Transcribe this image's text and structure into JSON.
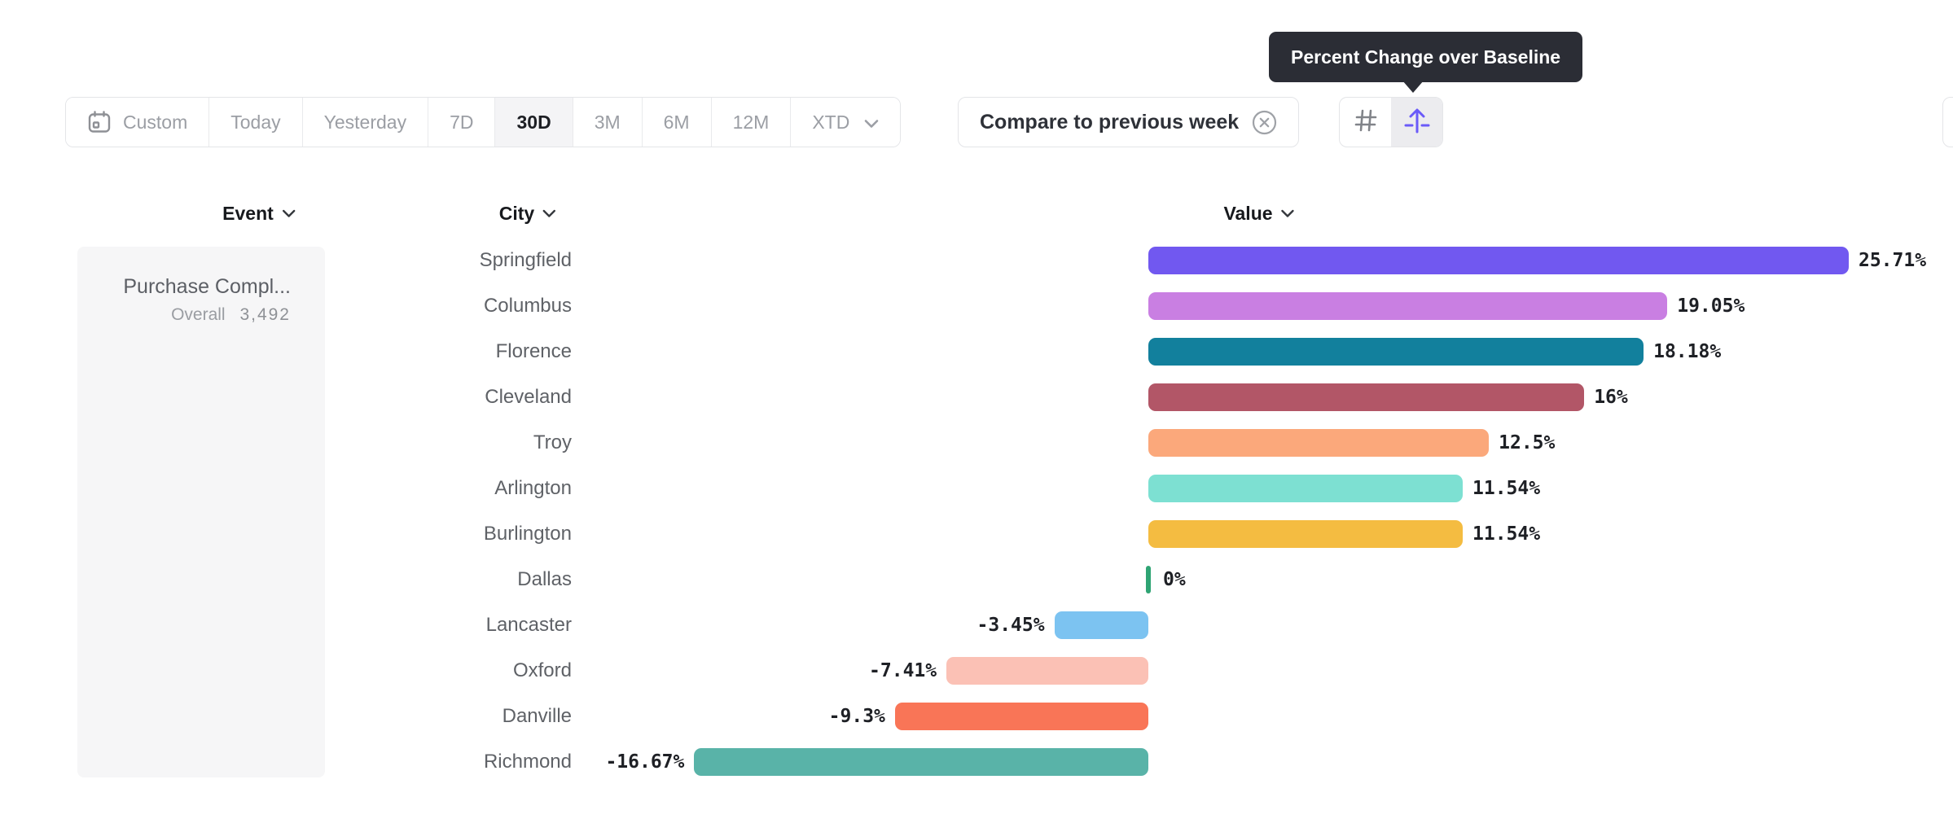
{
  "toolbar": {
    "date_ranges": [
      "Custom",
      "Today",
      "Yesterday",
      "7D",
      "30D",
      "3M",
      "6M",
      "12M",
      "XTD"
    ],
    "active_range": "30D",
    "compare_label": "Compare to previous week",
    "icon_names": [
      "number-grid-icon",
      "percent-change-baseline-icon"
    ]
  },
  "tooltip": {
    "text": "Percent Change over Baseline"
  },
  "columns": {
    "event": "Event",
    "city": "City",
    "value": "Value"
  },
  "event_card": {
    "title": "Purchase Compl...",
    "metric_label": "Overall",
    "metric_value": "3,492"
  },
  "chart_data": {
    "type": "bar",
    "orientation": "horizontal",
    "title": "Percent Change over Baseline",
    "unit": "%",
    "baseline": 0,
    "xlim": [
      -16.67,
      25.71
    ],
    "categories": [
      "Springfield",
      "Columbus",
      "Florence",
      "Cleveland",
      "Troy",
      "Arlington",
      "Burlington",
      "Dallas",
      "Lancaster",
      "Oxford",
      "Danville",
      "Richmond"
    ],
    "values": [
      25.71,
      19.05,
      18.18,
      16,
      12.5,
      11.54,
      11.54,
      0,
      -3.45,
      -7.41,
      -9.3,
      -16.67
    ],
    "labels": [
      "25.71%",
      "19.05%",
      "18.18%",
      "16%",
      "12.5%",
      "11.54%",
      "11.54%",
      "0%",
      "-3.45%",
      "-7.41%",
      "-9.3%",
      "-16.67%"
    ],
    "colors": [
      "#7158f0",
      "#c97fe2",
      "#12809d",
      "#b25667",
      "#fba87b",
      "#7de0d2",
      "#f4bc41",
      "#2fa474",
      "#7cc3f1",
      "#fbc1b5",
      "#f97557",
      "#59b3a8"
    ],
    "legend": "none",
    "grid": "off"
  }
}
